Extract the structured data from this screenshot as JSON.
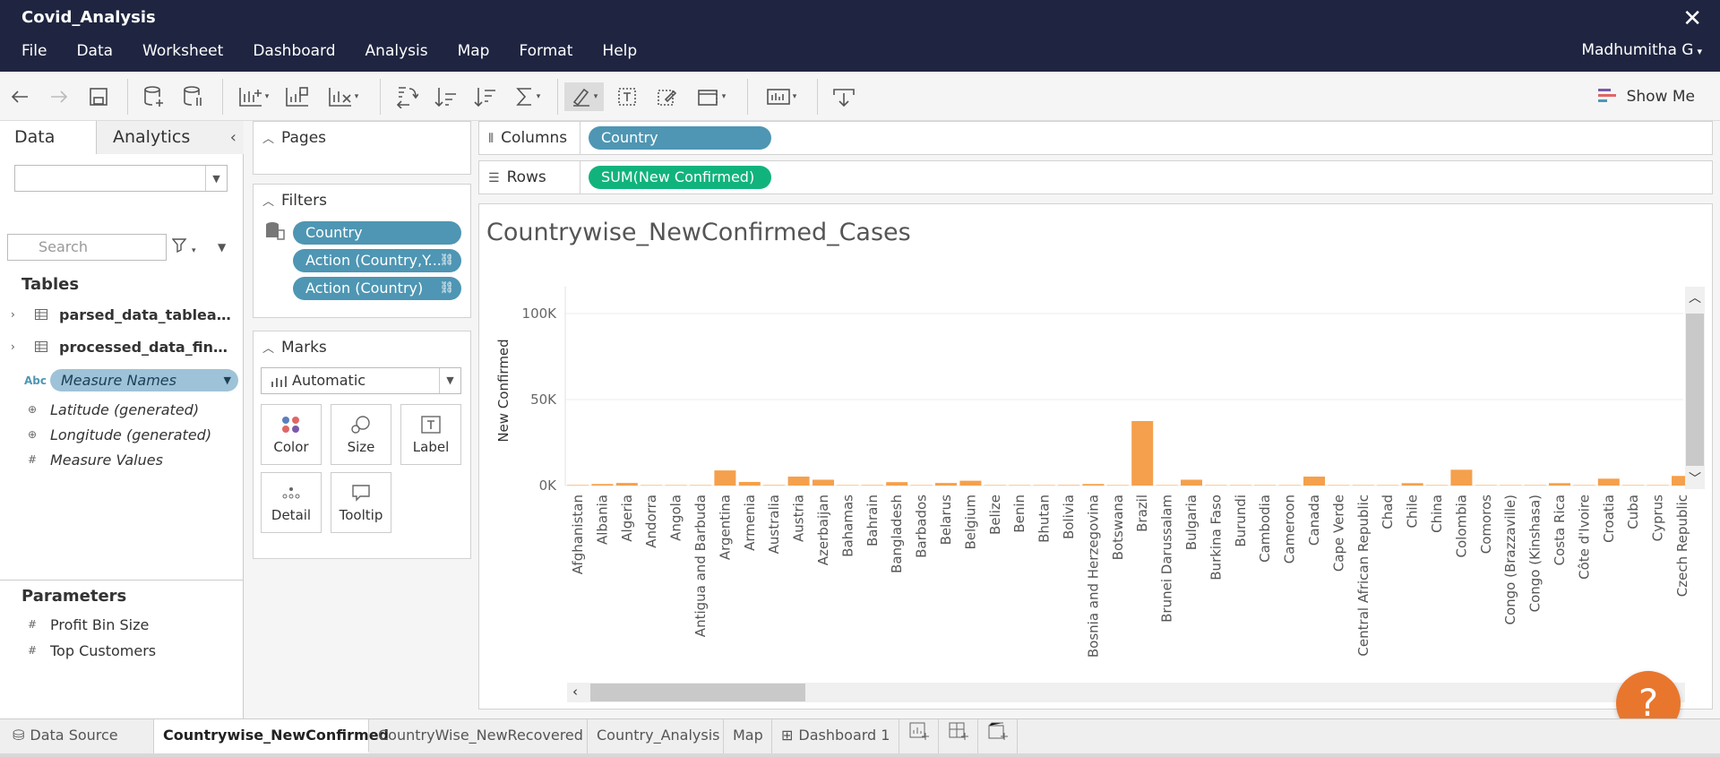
{
  "window": {
    "title": "Covid_Analysis",
    "close_glyph": "✕"
  },
  "menu": [
    "File",
    "Data",
    "Worksheet",
    "Dashboard",
    "Analysis",
    "Map",
    "Format",
    "Help"
  ],
  "user": {
    "name": "Madhumitha G",
    "caret": "▾"
  },
  "toolbar": {
    "icons": [
      "back-arrow-icon",
      "forward-arrow-icon",
      "save-icon",
      "new-data-source-icon",
      "pause-updates-icon",
      "new-worksheet-icon",
      "duplicate-icon",
      "clear-sheet-icon",
      "swap-rows-columns-icon",
      "sort-ascending-icon",
      "sort-descending-icon",
      "totals-icon",
      "highlight-icon",
      "labels-icon",
      "annotate-icon",
      "fit-icon",
      "presentation-icon",
      "download-icon"
    ],
    "show_me": "Show Me"
  },
  "data_pane": {
    "tabs": {
      "data": "Data",
      "analytics": "Analytics"
    },
    "collapse": "‹",
    "search_placeholder": "Search",
    "tables_title": "Tables",
    "tables": [
      {
        "name": "parsed_data_tableau.c..."
      },
      {
        "name": "processed_data_final.c..."
      }
    ],
    "measure_names": "Measure Names",
    "abc": "Abc",
    "fields": [
      {
        "name": "Latitude (generated)",
        "icon": "globe-icon"
      },
      {
        "name": "Longitude (generated)",
        "icon": "globe-icon"
      },
      {
        "name": "Measure Values",
        "icon": "hash-icon"
      }
    ],
    "parameters_title": "Parameters",
    "parameters": [
      {
        "name": "Profit Bin Size"
      },
      {
        "name": "Top Customers"
      }
    ]
  },
  "cards": {
    "pages_title": "Pages",
    "filters_title": "Filters",
    "filters": [
      "Country",
      "Action (Country,Y...",
      "Action (Country)"
    ],
    "marks_title": "Marks",
    "mark_type": "Automatic",
    "mark_buttons": [
      "Color",
      "Size",
      "Label",
      "Detail",
      "Tooltip"
    ]
  },
  "shelves": {
    "columns_label": "Columns",
    "columns_pill": "Country",
    "rows_label": "Rows",
    "rows_pill": "SUM(New Confirmed)",
    "colors": {
      "dimension": "#4e96b3",
      "measure": "#11b37c"
    }
  },
  "chart_data": {
    "type": "bar",
    "title": "Countrywise_NewConfirmed_Cases",
    "ylabel": "New Confirmed",
    "xlabel": "",
    "yticks": [
      "100K",
      "50K",
      "0K"
    ],
    "ylim": [
      0,
      100000
    ],
    "grid": true,
    "bar_color": "#f5a04c",
    "categories": [
      "Afghanistan",
      "Albania",
      "Algeria",
      "Andorra",
      "Angola",
      "Antigua and Barbuda",
      "Argentina",
      "Armenia",
      "Australia",
      "Austria",
      "Azerbaijan",
      "Bahamas",
      "Bahrain",
      "Bangladesh",
      "Barbados",
      "Belarus",
      "Belgium",
      "Belize",
      "Benin",
      "Bhutan",
      "Bolivia",
      "Bosnia and Herzegovina",
      "Botswana",
      "Brazil",
      "Brunei Darussalam",
      "Bulgaria",
      "Burkina Faso",
      "Burundi",
      "Cambodia",
      "Cameroon",
      "Canada",
      "Cape Verde",
      "Central African Republic",
      "Chad",
      "Chile",
      "China",
      "Colombia",
      "Comoros",
      "Congo (Brazzaville)",
      "Congo (Kinshasa)",
      "Costa Rica",
      "Côte d'Ivoire",
      "Croatia",
      "Cuba",
      "Cyprus",
      "Czech Republic"
    ],
    "values": [
      300,
      900,
      1500,
      100,
      150,
      50,
      8800,
      2100,
      300,
      5200,
      3400,
      80,
      300,
      2000,
      40,
      1500,
      2800,
      50,
      40,
      20,
      300,
      900,
      150,
      37500,
      20,
      3400,
      200,
      30,
      20,
      150,
      5200,
      80,
      50,
      20,
      1400,
      200,
      9200,
      20,
      40,
      150,
      1400,
      150,
      4000,
      100,
      200,
      5600
    ]
  },
  "sheet_tabs": {
    "data_source": "Data Source",
    "sheets": [
      "Countrywise_NewConfirmed",
      "CountryWise_NewRecovered",
      "Country_Analysis",
      "Map",
      "Dashboard 1"
    ],
    "active": "Countrywise_NewConfirmed"
  },
  "help": "?"
}
